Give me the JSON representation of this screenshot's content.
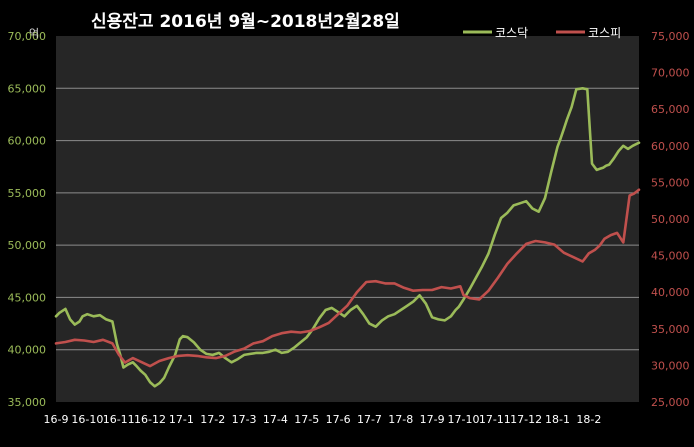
{
  "chart_data": {
    "type": "line",
    "title": "신용잔고 2016년 9월~2018년2월28일",
    "y_unit_label": "억",
    "categories": [
      "16-9",
      "16-10",
      "16-11",
      "16-12",
      "17-1",
      "17-2",
      "17-3",
      "17-4",
      "17-5",
      "17-6",
      "17-7",
      "17-8",
      "17-9",
      "17-10",
      "17-11",
      "17-12",
      "18-1",
      "18-2"
    ],
    "x_range": [
      0,
      18.6
    ],
    "left_axis": {
      "ylim": [
        35000,
        70000
      ],
      "ticks": [
        "35,000",
        "40,000",
        "45,000",
        "50,000",
        "55,000",
        "60,000",
        "65,000",
        "70,000"
      ],
      "color": "#9bbb59"
    },
    "right_axis": {
      "ylim": [
        25000,
        75000
      ],
      "ticks": [
        "25,000",
        "30,000",
        "35,000",
        "40,000",
        "45,000",
        "50,000",
        "55,000",
        "60,000",
        "65,000",
        "70,000",
        "75,000"
      ],
      "color": "#c0504d"
    },
    "grid": true,
    "legend_position": "top-right",
    "series": [
      {
        "name": "코스닥",
        "axis": "left",
        "color": "#9bbb59",
        "x": [
          0,
          0.1,
          0.3,
          0.45,
          0.6,
          0.75,
          0.85,
          1.0,
          1.2,
          1.4,
          1.6,
          1.8,
          1.95,
          2.05,
          2.15,
          2.3,
          2.45,
          2.55,
          2.7,
          2.85,
          3.0,
          3.15,
          3.3,
          3.45,
          3.6,
          3.8,
          3.95,
          4.05,
          4.2,
          4.4,
          4.6,
          4.8,
          5.0,
          5.2,
          5.4,
          5.6,
          5.8,
          6.0,
          6.2,
          6.4,
          6.6,
          6.8,
          7.0,
          7.2,
          7.4,
          7.6,
          7.8,
          8.0,
          8.2,
          8.4,
          8.6,
          8.8,
          9.0,
          9.2,
          9.4,
          9.6,
          9.8,
          10.0,
          10.2,
          10.4,
          10.6,
          10.8,
          11.0,
          11.2,
          11.4,
          11.6,
          11.8,
          12.0,
          12.2,
          12.4,
          12.6,
          12.75,
          12.85,
          13.0,
          13.2,
          13.4,
          13.6,
          13.8,
          14.0,
          14.2,
          14.4,
          14.6,
          14.8,
          15.0,
          15.2,
          15.4,
          15.6,
          15.8,
          16.0,
          16.1,
          16.2,
          16.3,
          16.45,
          16.6,
          16.8,
          16.95,
          17.1,
          17.25,
          17.35,
          17.45,
          17.55,
          17.65,
          17.8,
          17.95,
          18.1,
          18.25,
          18.4,
          18.6
        ],
        "values": [
          43200,
          43500,
          43900,
          42900,
          42400,
          42700,
          43200,
          43400,
          43200,
          43300,
          42900,
          42700,
          40500,
          39500,
          38300,
          38600,
          38800,
          38500,
          38000,
          37600,
          36900,
          36500,
          36800,
          37300,
          38300,
          39500,
          41000,
          41300,
          41200,
          40700,
          40000,
          39600,
          39500,
          39700,
          39200,
          38800,
          39100,
          39500,
          39600,
          39700,
          39700,
          39800,
          40000,
          39700,
          39800,
          40200,
          40700,
          41200,
          42000,
          43000,
          43800,
          44000,
          43600,
          43200,
          43800,
          44200,
          43400,
          42500,
          42200,
          42800,
          43200,
          43400,
          43800,
          44200,
          44600,
          45200,
          44400,
          43100,
          42900,
          42800,
          43200,
          43800,
          44100,
          44800,
          45800,
          46900,
          48000,
          49200,
          51000,
          52600,
          53100,
          53800,
          54000,
          54200,
          53500,
          53200,
          54500,
          57000,
          59400,
          60200,
          61100,
          62000,
          63200,
          64900,
          65000,
          64900,
          57800,
          57200,
          57300,
          57400,
          57600,
          57700,
          58300,
          59000,
          59500,
          59200,
          59500,
          59800
        ]
      },
      {
        "name": "코스피",
        "axis": "right",
        "color": "#c0504d",
        "x": [
          0,
          0.3,
          0.6,
          0.9,
          1.2,
          1.5,
          1.8,
          2.0,
          2.2,
          2.45,
          2.7,
          3.0,
          3.3,
          3.6,
          3.9,
          4.2,
          4.5,
          4.8,
          5.1,
          5.4,
          5.7,
          6.0,
          6.3,
          6.6,
          6.9,
          7.2,
          7.5,
          7.8,
          8.1,
          8.4,
          8.7,
          9.0,
          9.3,
          9.6,
          9.9,
          10.2,
          10.5,
          10.8,
          11.1,
          11.4,
          11.7,
          12.0,
          12.3,
          12.6,
          12.9,
          13.0,
          13.2,
          13.5,
          13.8,
          14.1,
          14.4,
          14.7,
          15.0,
          15.3,
          15.6,
          15.9,
          16.2,
          16.5,
          16.8,
          17.0,
          17.2,
          17.35,
          17.5,
          17.7,
          17.9,
          18.1,
          18.3,
          18.45,
          18.6
        ],
        "values": [
          33000,
          33200,
          33500,
          33400,
          33200,
          33500,
          33000,
          31500,
          30400,
          31000,
          30500,
          29900,
          30600,
          31000,
          31300,
          31400,
          31300,
          31100,
          31000,
          31300,
          31900,
          32300,
          33000,
          33300,
          34000,
          34400,
          34600,
          34500,
          34700,
          35200,
          35800,
          37000,
          38200,
          40000,
          41400,
          41500,
          41200,
          41200,
          40600,
          40200,
          40300,
          40300,
          40700,
          40500,
          40800,
          39600,
          39200,
          39000,
          40200,
          42000,
          43900,
          45300,
          46600,
          47000,
          46800,
          46500,
          45400,
          44800,
          44200,
          45300,
          45800,
          46400,
          47300,
          47800,
          48100,
          46800,
          53200,
          53500,
          54000
        ]
      }
    ]
  }
}
